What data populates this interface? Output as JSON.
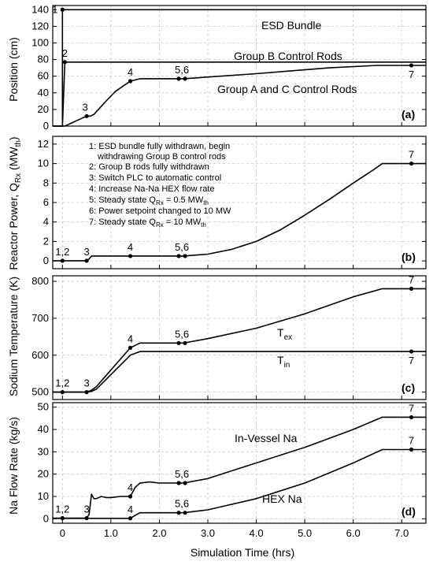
{
  "xlabel": "Simulation Time (hrs)",
  "xlim": [
    -0.2,
    7.5
  ],
  "x_ticks": [
    "0",
    "1.0",
    "2.0",
    "3.0",
    "4.0",
    "5.0",
    "6.0",
    "7.0"
  ],
  "chart_data": [
    {
      "type": "line",
      "panel_label": "(a)",
      "ylabel": "Position (cm)",
      "ylim": [
        0,
        145
      ],
      "y_ticks": [
        0,
        20,
        40,
        60,
        80,
        100,
        120,
        140
      ],
      "series": [
        {
          "name": "ESD Bundle",
          "x": [
            -0.2,
            0.0,
            0.0,
            7.5
          ],
          "y": [
            0,
            0,
            140,
            140
          ]
        },
        {
          "name": "Group B Control Rods",
          "x": [
            -0.2,
            0.0,
            0.05,
            7.5
          ],
          "y": [
            0,
            0,
            77,
            77
          ]
        },
        {
          "name": "Group A and C Control Rods",
          "x": [
            -0.2,
            0.05,
            0.5,
            0.58,
            0.65,
            0.9,
            1.1,
            1.4,
            1.6,
            2.0,
            2.5,
            4.0,
            5.5,
            6.5,
            7.5
          ],
          "y": [
            0,
            0,
            12,
            12,
            14,
            30,
            42,
            54,
            57,
            57,
            57,
            63,
            70,
            73,
            73
          ]
        }
      ],
      "points": [
        {
          "label": "1",
          "x": 0.0,
          "y": 140
        },
        {
          "label": "2",
          "x": 0.05,
          "y": 77
        },
        {
          "label": "3",
          "x": 0.5,
          "y": 12
        },
        {
          "label": "4",
          "x": 1.4,
          "y": 54
        },
        {
          "label": "5,6",
          "x": 2.4,
          "y": 57
        },
        {
          "label": "7",
          "x": 7.2,
          "y": 73
        }
      ]
    },
    {
      "type": "line",
      "panel_label": "(b)",
      "ylabel_main": "Reactor Power, Q",
      "ylabel_sub": "Rx",
      "ylabel_units_a": " (MW",
      "ylabel_units_sub": "th",
      "ylabel_units_b": ")",
      "ylim": [
        -0.8,
        12.8
      ],
      "y_ticks": [
        0,
        2,
        4,
        6,
        8,
        10,
        12
      ],
      "series": [
        {
          "name": "Reactor Power",
          "x": [
            -0.2,
            0.5,
            0.55,
            0.6,
            1.4,
            2.5,
            3.0,
            3.5,
            4.0,
            4.5,
            5.0,
            5.5,
            6.0,
            6.4,
            6.6,
            7.5
          ],
          "y": [
            0.02,
            0.02,
            0.2,
            0.5,
            0.5,
            0.5,
            0.7,
            1.2,
            2.0,
            3.2,
            4.7,
            6.3,
            8.0,
            9.3,
            10.0,
            10.0
          ]
        }
      ],
      "points": [
        {
          "label": "1,2",
          "x": 0.0,
          "y": 0.02
        },
        {
          "label": "3",
          "x": 0.5,
          "y": 0.02
        },
        {
          "label": "4",
          "x": 1.4,
          "y": 0.5
        },
        {
          "label": "5,6",
          "x": 2.4,
          "y": 0.5
        },
        {
          "label": "7",
          "x": 7.2,
          "y": 10.0
        }
      ],
      "legend": [
        {
          "text": "1: ESD bundle fully withdrawn, begin"
        },
        {
          "text": "withdrawing Group B control rods"
        },
        {
          "text": "2: Group B rods fully withdrawn"
        },
        {
          "text": "3: Switch PLC to automatic control"
        },
        {
          "text": "4: Increase Na-Na HEX flow rate"
        },
        {
          "text": "5: Steady state Q",
          "sub": "Rx",
          "rest": " = 0.5 MW",
          "sub2": "th"
        },
        {
          "text": "6: Power setpoint changed to 10 MW"
        },
        {
          "text": "7: Steady state Q",
          "sub": "Rx",
          "rest": " = 10 MW",
          "sub2": "th"
        }
      ]
    },
    {
      "type": "line",
      "panel_label": "(c)",
      "ylabel": "Sodium Temperature (K)",
      "ylim": [
        480,
        815
      ],
      "y_ticks": [
        500,
        600,
        700,
        800
      ],
      "series": [
        {
          "name": "T",
          "sub": "ex",
          "x": [
            -0.2,
            0.5,
            0.6,
            0.7,
            1.4,
            1.6,
            2.0,
            2.5,
            3.0,
            4.0,
            5.0,
            6.0,
            6.6,
            7.5
          ],
          "y": [
            500,
            500,
            505,
            515,
            620,
            633,
            633,
            633,
            645,
            673,
            712,
            758,
            780,
            780
          ]
        },
        {
          "name": "T",
          "sub": "in",
          "x": [
            -0.2,
            0.5,
            0.6,
            0.7,
            1.4,
            1.6,
            2.0,
            2.5,
            7.5
          ],
          "y": [
            500,
            500,
            502,
            508,
            600,
            610,
            610,
            610,
            610
          ]
        }
      ],
      "points": [
        {
          "label": "1,2",
          "x": 0.0,
          "y": 500
        },
        {
          "label": "3",
          "x": 0.5,
          "y": 500
        },
        {
          "label": "4",
          "x": 1.4,
          "y": 620
        },
        {
          "label": "5,6",
          "x": 2.4,
          "y": 633
        },
        {
          "label": "7",
          "x": 7.2,
          "y": 780
        },
        {
          "label": "7",
          "x": 7.2,
          "y": 610
        }
      ]
    },
    {
      "type": "line",
      "panel_label": "(d)",
      "ylabel": "Na Flow Rate (kg/s)",
      "ylim": [
        -2,
        52
      ],
      "y_ticks": [
        0,
        10,
        20,
        30,
        40,
        50
      ],
      "series": [
        {
          "name": "In-Vessel Na",
          "x": [
            -0.2,
            0.5,
            0.55,
            0.6,
            0.65,
            0.7,
            0.8,
            0.9,
            1.0,
            1.2,
            1.4,
            1.5,
            1.6,
            1.8,
            2.0,
            2.5,
            3.0,
            4.0,
            5.0,
            6.0,
            6.6,
            7.5
          ],
          "y": [
            0.3,
            0.3,
            2,
            11,
            9,
            9,
            10,
            9.5,
            9.5,
            10,
            10,
            14,
            16,
            16.5,
            16,
            16,
            18,
            25,
            32,
            40,
            45.5,
            45.5
          ]
        },
        {
          "name": "HEX Na",
          "x": [
            -0.2,
            1.4,
            1.5,
            1.6,
            2.0,
            2.5,
            3.0,
            4.0,
            5.0,
            6.0,
            6.6,
            7.5
          ],
          "y": [
            0.2,
            0.2,
            1.5,
            2.7,
            2.7,
            2.7,
            4.0,
            9.0,
            16.0,
            25.0,
            31.0,
            31.0
          ]
        }
      ],
      "points": [
        {
          "label": "1,2",
          "x": 0.0,
          "y": 0.3
        },
        {
          "label": "3",
          "x": 0.5,
          "y": 0.3
        },
        {
          "label": "4",
          "x": 1.4,
          "y": 10
        },
        {
          "label": "4",
          "x": 1.4,
          "y": 0.2
        },
        {
          "label": "5,6",
          "x": 2.4,
          "y": 16
        },
        {
          "label": "5,6",
          "x": 2.4,
          "y": 2.7
        },
        {
          "label": "7",
          "x": 7.2,
          "y": 45.5
        },
        {
          "label": "7",
          "x": 7.2,
          "y": 31
        }
      ]
    }
  ]
}
